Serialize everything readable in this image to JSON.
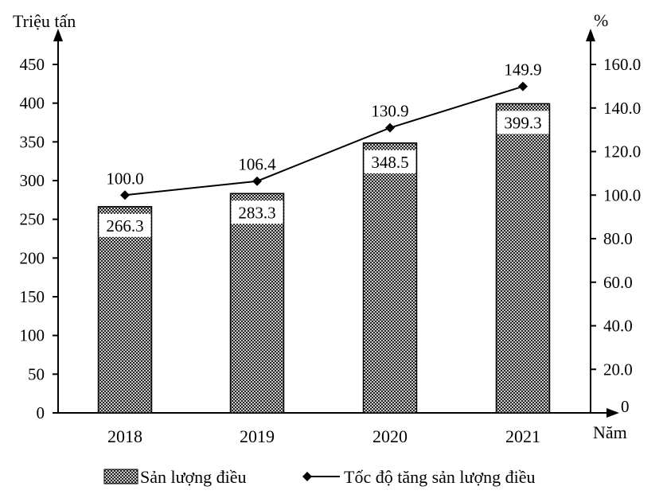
{
  "chart_data": {
    "type": "bar+line",
    "title": "",
    "categories": [
      "2018",
      "2019",
      "2020",
      "2021"
    ],
    "xlabel": "Năm",
    "ylabel_left": "Triệu tấn",
    "ylabel_right": "%",
    "ylim_left": [
      0,
      450
    ],
    "ylim_right": [
      0,
      160
    ],
    "left_ticks": [
      "0",
      "50",
      "100",
      "150",
      "200",
      "250",
      "300",
      "350",
      "400",
      "450"
    ],
    "right_ticks": [
      "0",
      "20.0",
      "40.0",
      "60.0",
      "80.0",
      "100.0",
      "120.0",
      "140.0",
      "160.0"
    ],
    "grid": false,
    "legend_position": "bottom",
    "series": [
      {
        "name": "Sản lượng điều",
        "type": "bar",
        "axis": "left",
        "pattern": "crosshatch",
        "values": [
          266.3,
          283.3,
          348.5,
          399.3
        ],
        "labels": [
          "266.3",
          "283.3",
          "348.5",
          "399.3"
        ]
      },
      {
        "name": "Tốc độ tăng sản lượng điều",
        "type": "line",
        "axis": "right",
        "marker": "diamond",
        "values": [
          100.0,
          106.4,
          130.9,
          149.9
        ],
        "labels": [
          "100.0",
          "106.4",
          "130.9",
          "149.9"
        ]
      }
    ]
  },
  "axes": {
    "left_title": "Triệu tấn",
    "right_title": "%",
    "x_title": "Năm"
  },
  "legend": {
    "items": [
      {
        "label": "Sản lượng điều",
        "icon": "crosshatch-swatch-icon"
      },
      {
        "label": "Tốc độ tăng sản lượng điều",
        "icon": "diamond-line-icon"
      }
    ]
  },
  "colors": {
    "ink": "#000000",
    "background": "#ffffff",
    "bar_pattern_fg": "#000000",
    "bar_pattern_bg": "#ffffff"
  }
}
